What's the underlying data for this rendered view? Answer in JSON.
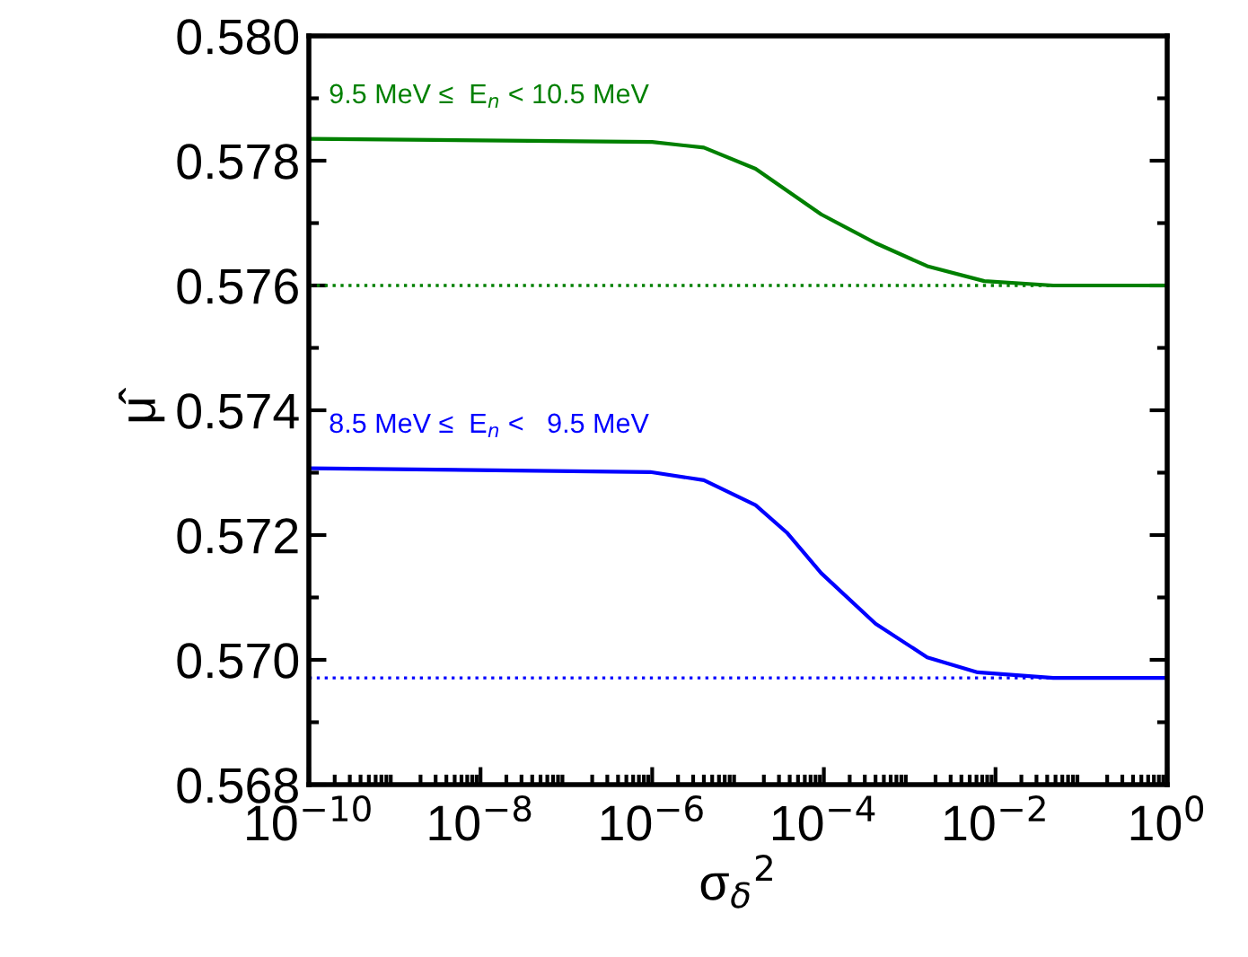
{
  "chart_data": {
    "type": "line",
    "xlabel": "σ$_{δ}$$^{2}$",
    "ylabel": "μ̂",
    "log": "x",
    "grid": false,
    "legend": false,
    "line_style": "solid",
    "marker": "none",
    "xlim": [
      1e-10,
      1
    ],
    "ylim": [
      0.568,
      0.58
    ],
    "xticks": [
      {
        "value": 1e-10,
        "label": "10$^{−10}$"
      },
      {
        "value": 1e-08,
        "label": "10$^{−8}$"
      },
      {
        "value": 1e-06,
        "label": "10$^{−6}$"
      },
      {
        "value": 0.0001,
        "label": "10$^{−4}$"
      },
      {
        "value": 0.01,
        "label": "10$^{−2}$"
      },
      {
        "value": 1,
        "label": "10$^{0}$"
      }
    ],
    "yticks": [
      {
        "value": 0.568,
        "label": "0.568"
      },
      {
        "value": 0.57,
        "label": "0.570"
      },
      {
        "value": 0.572,
        "label": "0.572"
      },
      {
        "value": 0.574,
        "label": "0.574"
      },
      {
        "value": 0.576,
        "label": "0.576"
      },
      {
        "value": 0.578,
        "label": "0.578"
      },
      {
        "value": 0.58,
        "label": "0.580"
      }
    ],
    "series": [
      {
        "name": "9.5 MeV ≤  E$_{n}$ < 10.5 MeV",
        "color": "#008000",
        "x": [
          1e-10,
          1e-06,
          4e-06,
          1.6e-05,
          9.3e-05,
          0.0004,
          0.0016,
          0.0074,
          0.047,
          1
        ],
        "values": [
          0.57835,
          0.5783,
          0.57821,
          0.57787,
          0.57714,
          0.57668,
          0.57631,
          0.57607,
          0.576,
          0.576
        ]
      },
      {
        "name": "8.5 MeV ≤  E$_{n}$ <   9.5 MeV",
        "color": "#0000ff",
        "x": [
          1e-10,
          9.5e-07,
          4e-06,
          1.6e-05,
          3.7e-05,
          9.3e-05,
          0.0004,
          0.0016,
          0.0062,
          0.047,
          1
        ],
        "values": [
          0.57307,
          0.57301,
          0.57288,
          0.57248,
          0.57204,
          0.57139,
          0.57058,
          0.57004,
          0.5698,
          0.56971,
          0.56971
        ]
      }
    ],
    "ref_lines": [
      {
        "axis": "y",
        "value": 0.576,
        "color": "#008000",
        "line_style": "dotted"
      },
      {
        "axis": "y",
        "value": 0.56971,
        "color": "#0000ff",
        "line_style": "dotted"
      }
    ]
  }
}
